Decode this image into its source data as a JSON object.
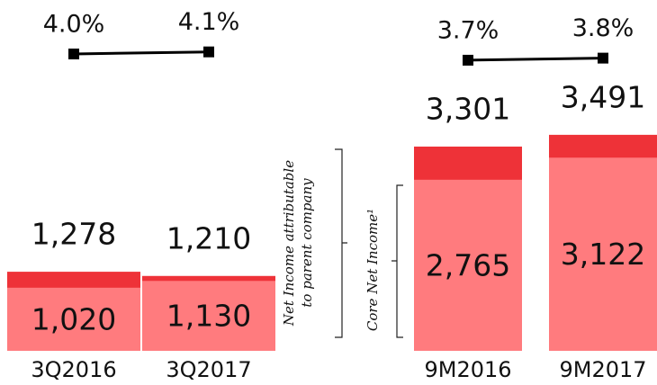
{
  "chart_data": {
    "type": "bar",
    "categories": [
      "3Q2016",
      "3Q2017",
      "9M2016",
      "9M2017"
    ],
    "ylim": [
      0,
      5670
    ],
    "y2lim": [
      2.7,
      5.3
    ],
    "series": [
      {
        "name": "Net Income attributable to parent company",
        "color": "#ee3238",
        "values": [
          1278,
          1210,
          3301,
          3491
        ],
        "value_labels": [
          "1,278",
          "1,210",
          "3,301",
          "3,491"
        ]
      },
      {
        "name": "Core Net Income¹",
        "color": "#ff7b7e",
        "values": [
          1020,
          1130,
          2765,
          3122
        ],
        "value_labels": [
          "1,020",
          "1,130",
          "2,765",
          "3,122"
        ]
      },
      {
        "type": "line",
        "axis": "y2",
        "color": "#000000",
        "values": [
          4.0,
          4.1,
          null,
          null
        ],
        "value_labels": [
          "4.0%",
          "4.1%",
          null,
          null
        ]
      },
      {
        "type": "line",
        "axis": "y2",
        "color": "#000000",
        "values": [
          null,
          null,
          3.7,
          3.8
        ],
        "value_labels": [
          null,
          null,
          "3.7%",
          "3.8%"
        ]
      }
    ],
    "annotations": [
      "Net Income attributable",
      "to parent company",
      "Core Net Income¹"
    ]
  }
}
